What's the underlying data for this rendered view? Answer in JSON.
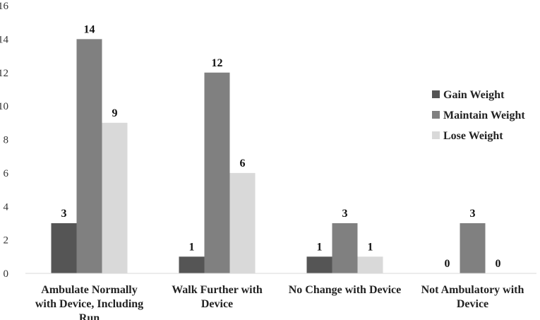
{
  "chart_data": {
    "type": "bar",
    "categories": [
      [
        "Ambulate Normally",
        "with Device, Including",
        "Run"
      ],
      [
        "Walk Further with",
        "Device"
      ],
      [
        "No Change with Device"
      ],
      [
        "Not Ambulatory with",
        "Device"
      ]
    ],
    "series": [
      {
        "name": "Gain Weight",
        "values": [
          3,
          1,
          1,
          0
        ],
        "color": "#555555",
        "labels": [
          "3",
          "1",
          "1",
          "0"
        ]
      },
      {
        "name": "Maintain Weight",
        "values": [
          14,
          12,
          3,
          3
        ],
        "color": "#808080",
        "labels": [
          "14",
          "12",
          "3",
          "3"
        ]
      },
      {
        "name": "Lose Weight",
        "values": [
          9,
          6,
          1,
          0
        ],
        "color": "#d9d9d9",
        "labels": [
          "9",
          "6",
          "1",
          "0"
        ]
      }
    ],
    "ylim": [
      0,
      16
    ],
    "yticks": [
      "0",
      "2",
      "4",
      "6",
      "8",
      "10",
      "12",
      "14",
      "16"
    ],
    "grid": false,
    "legend_position": "right"
  }
}
